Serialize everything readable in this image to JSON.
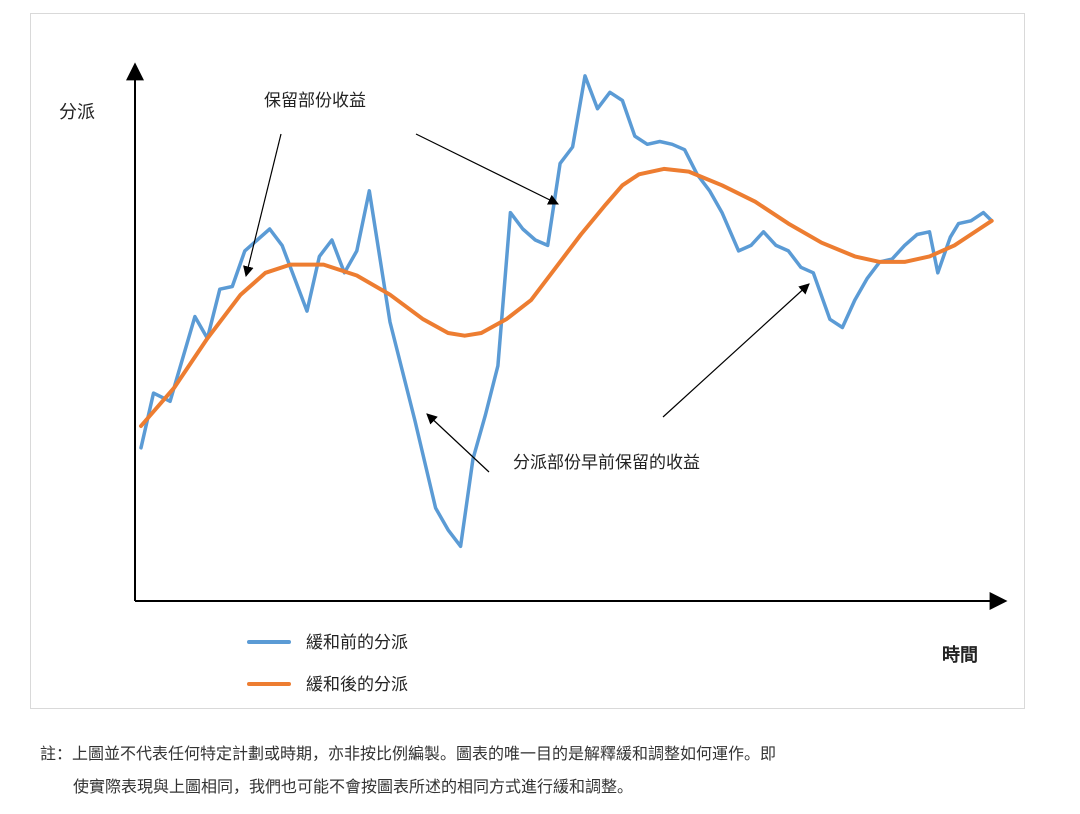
{
  "chart_data": {
    "type": "line",
    "title": "",
    "ylabel": "分派",
    "xlabel": "時間",
    "ylim": [
      0,
      100
    ],
    "xlim": [
      0,
      100
    ],
    "grid": false,
    "series": [
      {
        "name": "緩和前的分派",
        "color": "#5b9bd5",
        "points": [
          [
            0,
            28
          ],
          [
            1.5,
            38
          ],
          [
            3.5,
            36.5
          ],
          [
            6.5,
            52
          ],
          [
            8,
            48
          ],
          [
            9.5,
            57
          ],
          [
            11,
            57.5
          ],
          [
            12.5,
            64
          ],
          [
            14,
            66
          ],
          [
            15.5,
            68
          ],
          [
            17,
            65
          ],
          [
            20,
            53
          ],
          [
            21.5,
            63
          ],
          [
            23,
            66
          ],
          [
            24.5,
            60
          ],
          [
            26,
            64
          ],
          [
            27.5,
            75
          ],
          [
            30,
            51
          ],
          [
            33,
            33
          ],
          [
            35.5,
            17
          ],
          [
            37,
            13
          ],
          [
            38.5,
            10
          ],
          [
            40,
            26
          ],
          [
            41.5,
            34
          ],
          [
            43,
            43
          ],
          [
            44.5,
            71
          ],
          [
            46,
            68
          ],
          [
            47.5,
            66
          ],
          [
            49,
            65
          ],
          [
            50.5,
            80
          ],
          [
            52,
            83
          ],
          [
            53.5,
            96
          ],
          [
            55,
            90
          ],
          [
            56.5,
            93
          ],
          [
            58,
            91.5
          ],
          [
            59.5,
            85
          ],
          [
            61,
            83.5
          ],
          [
            62.5,
            84
          ],
          [
            64,
            83.5
          ],
          [
            65.5,
            82.5
          ],
          [
            67,
            78
          ],
          [
            68.5,
            75
          ],
          [
            70,
            71
          ],
          [
            72,
            64
          ],
          [
            73.5,
            65
          ],
          [
            75,
            67.5
          ],
          [
            76.5,
            65
          ],
          [
            78,
            64
          ],
          [
            79.5,
            61
          ],
          [
            81,
            60
          ],
          [
            83,
            51.5
          ],
          [
            84.5,
            50
          ],
          [
            86,
            55
          ],
          [
            87.5,
            59
          ],
          [
            89,
            62
          ],
          [
            90.5,
            62.5
          ],
          [
            92,
            65
          ],
          [
            93.5,
            67
          ],
          [
            95,
            67.5
          ],
          [
            96,
            60
          ],
          [
            97.5,
            66.5
          ],
          [
            98.5,
            69
          ],
          [
            100,
            69.5
          ],
          [
            101.5,
            71
          ],
          [
            102.5,
            69.5
          ]
        ]
      },
      {
        "name": "緩和後的分派",
        "color": "#ed7d31",
        "points": [
          [
            0,
            32
          ],
          [
            4,
            39
          ],
          [
            8,
            48
          ],
          [
            12,
            56
          ],
          [
            15,
            60
          ],
          [
            18,
            61.5
          ],
          [
            22,
            61.5
          ],
          [
            26,
            59.5
          ],
          [
            30,
            56
          ],
          [
            34,
            51.5
          ],
          [
            37,
            49
          ],
          [
            39,
            48.5
          ],
          [
            41,
            49
          ],
          [
            44,
            51.5
          ],
          [
            47,
            55
          ],
          [
            50,
            61
          ],
          [
            53,
            67
          ],
          [
            56,
            72.5
          ],
          [
            58,
            76
          ],
          [
            60,
            78
          ],
          [
            63,
            79
          ],
          [
            66,
            78.5
          ],
          [
            70,
            76
          ],
          [
            74,
            73
          ],
          [
            78,
            69
          ],
          [
            82,
            65.5
          ],
          [
            86,
            63
          ],
          [
            89,
            62
          ],
          [
            92,
            62
          ],
          [
            95,
            63
          ],
          [
            98,
            65
          ],
          [
            101,
            68
          ],
          [
            102.5,
            69.5
          ]
        ]
      }
    ],
    "annotations": {
      "retained": "保留部份收益",
      "distributed_early": "分派部份早前保留的收益"
    },
    "legend_position": "bottom-left"
  },
  "note": {
    "line1": "註：上圖並不代表任何特定計劃或時期，亦非按比例編製。圖表的唯一目的是解釋緩和調整如何運作。即",
    "line2": "使實際表現與上圖相同，我們也可能不會按圖表所述的相同方式進行緩和調整。"
  }
}
